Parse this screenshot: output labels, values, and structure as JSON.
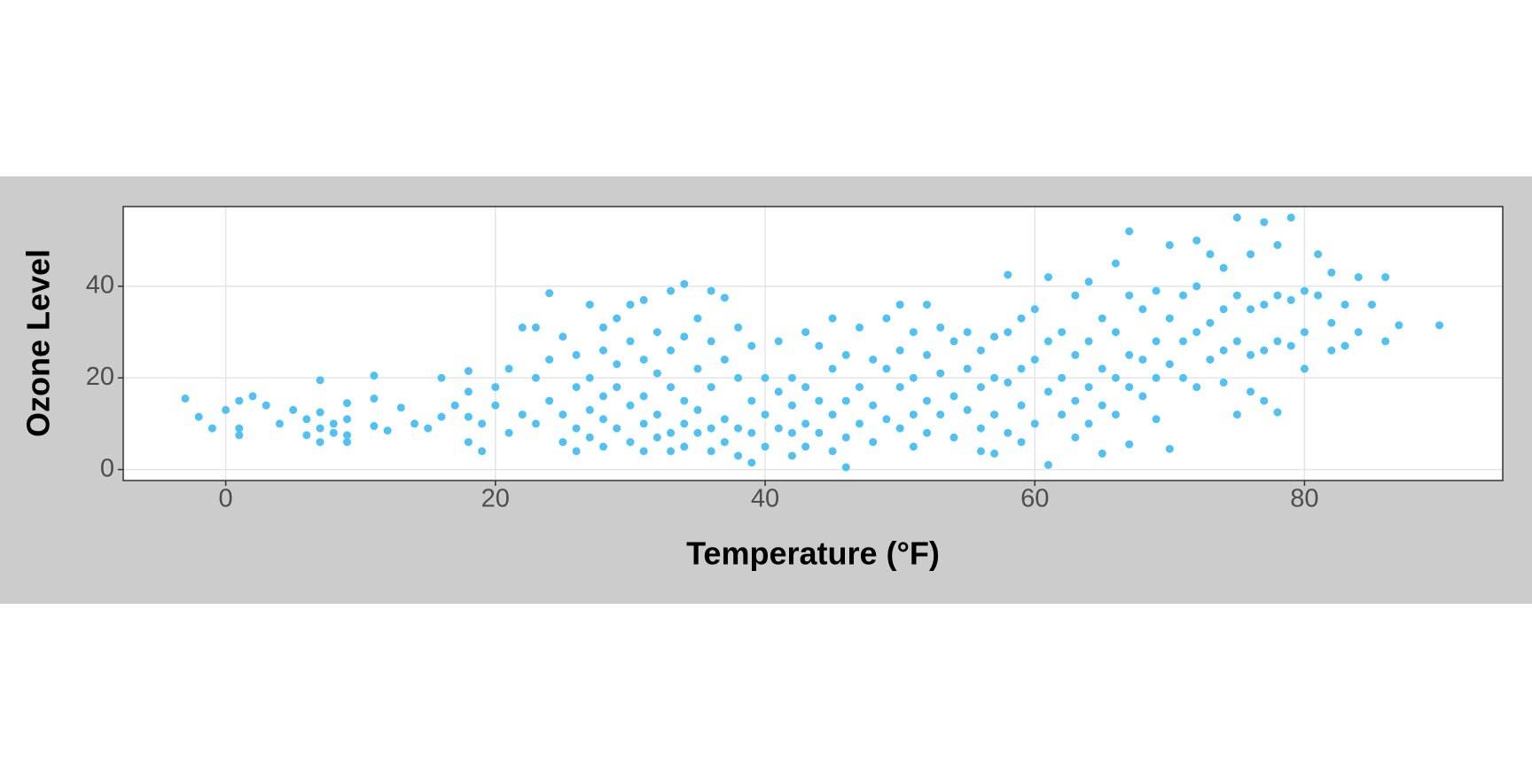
{
  "chart_data": {
    "type": "scatter",
    "x_label": "Temperature (°F)",
    "y_label": "Ozone Level",
    "color": "#4fc1f2",
    "grid": true,
    "xlim": [
      -7.6,
      94.7
    ],
    "ylim": [
      -2.4,
      57.4
    ],
    "xticks": [
      0,
      20,
      40,
      60,
      80
    ],
    "yticks": [
      0,
      20,
      40
    ],
    "x": [
      -3,
      -2,
      -1,
      0,
      1,
      1,
      1,
      2,
      3,
      4,
      5,
      6,
      6,
      7,
      7,
      7,
      7,
      8,
      8,
      9,
      9,
      9,
      9,
      11,
      11,
      11,
      12,
      13,
      14,
      15,
      16,
      16,
      17,
      18,
      18,
      18,
      18,
      19,
      19,
      20,
      20,
      21,
      21,
      22,
      22,
      23,
      23,
      23,
      24,
      24,
      24,
      25,
      25,
      25,
      26,
      26,
      26,
      26,
      27,
      27,
      27,
      27,
      28,
      28,
      28,
      28,
      28,
      29,
      29,
      29,
      29,
      30,
      30,
      30,
      30,
      31,
      31,
      31,
      31,
      31,
      32,
      32,
      32,
      32,
      33,
      33,
      33,
      33,
      33,
      34,
      34,
      34,
      34,
      34,
      35,
      35,
      35,
      35,
      36,
      36,
      36,
      36,
      36,
      37,
      37,
      37,
      37,
      38,
      38,
      38,
      38,
      39,
      39,
      39,
      39,
      40,
      40,
      40,
      41,
      41,
      41,
      42,
      42,
      42,
      42,
      43,
      43,
      43,
      43,
      44,
      44,
      44,
      45,
      45,
      45,
      45,
      46,
      46,
      46,
      46,
      47,
      47,
      47,
      48,
      48,
      48,
      49,
      49,
      49,
      50,
      50,
      50,
      50,
      51,
      51,
      51,
      51,
      52,
      52,
      52,
      52,
      53,
      53,
      53,
      54,
      54,
      54,
      55,
      55,
      55,
      56,
      56,
      56,
      56,
      57,
      57,
      57,
      57,
      58,
      58,
      58,
      58,
      59,
      59,
      59,
      59,
      60,
      60,
      60,
      61,
      61,
      61,
      61,
      62,
      62,
      62,
      63,
      63,
      63,
      63,
      64,
      64,
      64,
      64,
      65,
      65,
      65,
      65,
      66,
      66,
      66,
      66,
      67,
      67,
      67,
      67,
      67,
      68,
      68,
      68,
      69,
      69,
      69,
      69,
      70,
      70,
      70,
      70,
      71,
      71,
      71,
      72,
      72,
      72,
      72,
      73,
      73,
      73,
      74,
      74,
      74,
      74,
      75,
      75,
      75,
      75,
      76,
      76,
      76,
      76,
      77,
      77,
      77,
      77,
      78,
      78,
      78,
      78,
      79,
      79,
      79,
      80,
      80,
      80,
      81,
      81,
      82,
      82,
      82,
      83,
      83,
      84,
      84,
      85,
      86,
      86,
      87,
      90
    ],
    "y": [
      15.5,
      11.5,
      9,
      13,
      15,
      9,
      7.5,
      16,
      14,
      10,
      13,
      11,
      7.5,
      19.5,
      12.5,
      9,
      6,
      10,
      8,
      14.5,
      11,
      7.5,
      6,
      20.5,
      15.5,
      9.5,
      8.5,
      13.5,
      10,
      9,
      20,
      11.5,
      14,
      21.5,
      17,
      11.5,
      6,
      10,
      4,
      14,
      18,
      22,
      8,
      31,
      12,
      31,
      20,
      10,
      38.5,
      24,
      15,
      29,
      12,
      6,
      25,
      18,
      9,
      4,
      36,
      20,
      13,
      7,
      31,
      26,
      16,
      11,
      5,
      33,
      23,
      18,
      9,
      36,
      28,
      14,
      6,
      37,
      24,
      16,
      10,
      4,
      30,
      21,
      12,
      7,
      39,
      26,
      18,
      8,
      4,
      40.5,
      29,
      15,
      10,
      5,
      33,
      22,
      13,
      8,
      39,
      28,
      18,
      9,
      4,
      37.5,
      24,
      11,
      6,
      31,
      20,
      9,
      3,
      27,
      15,
      8,
      1.5,
      20,
      12,
      5,
      28,
      17,
      9,
      20,
      14,
      8,
      3,
      30,
      18,
      10,
      5,
      27,
      15,
      8,
      33,
      22,
      12,
      4,
      25,
      15,
      7,
      0.5,
      31,
      18,
      10,
      24,
      14,
      6,
      33,
      22,
      11,
      36,
      26,
      18,
      9,
      30,
      20,
      12,
      5,
      36,
      25,
      15,
      8,
      31,
      21,
      12,
      28,
      16,
      7,
      30,
      22,
      13,
      26,
      18,
      9,
      4,
      29,
      20,
      12,
      3.5,
      42.5,
      30,
      19,
      8,
      33,
      22,
      14,
      6,
      35,
      24,
      10,
      42,
      28,
      17,
      1,
      30,
      20,
      12,
      38,
      25,
      15,
      7,
      41,
      28,
      18,
      10,
      33,
      22,
      14,
      3.5,
      45,
      30,
      20,
      12,
      52,
      38,
      25,
      18,
      5.5,
      35,
      24,
      16,
      39,
      28,
      20,
      11,
      49,
      33,
      23,
      4.5,
      38,
      28,
      20,
      50,
      40,
      30,
      18,
      47,
      32,
      24,
      44,
      35,
      26,
      19,
      55,
      38,
      28,
      12,
      47,
      35,
      25,
      17,
      54,
      36,
      26,
      15,
      49,
      38,
      28,
      12.5,
      55,
      37,
      27,
      39,
      30,
      22,
      47,
      38,
      43,
      32,
      26,
      36,
      27,
      42,
      30,
      36,
      42,
      28,
      31.5,
      31.5
    ]
  }
}
